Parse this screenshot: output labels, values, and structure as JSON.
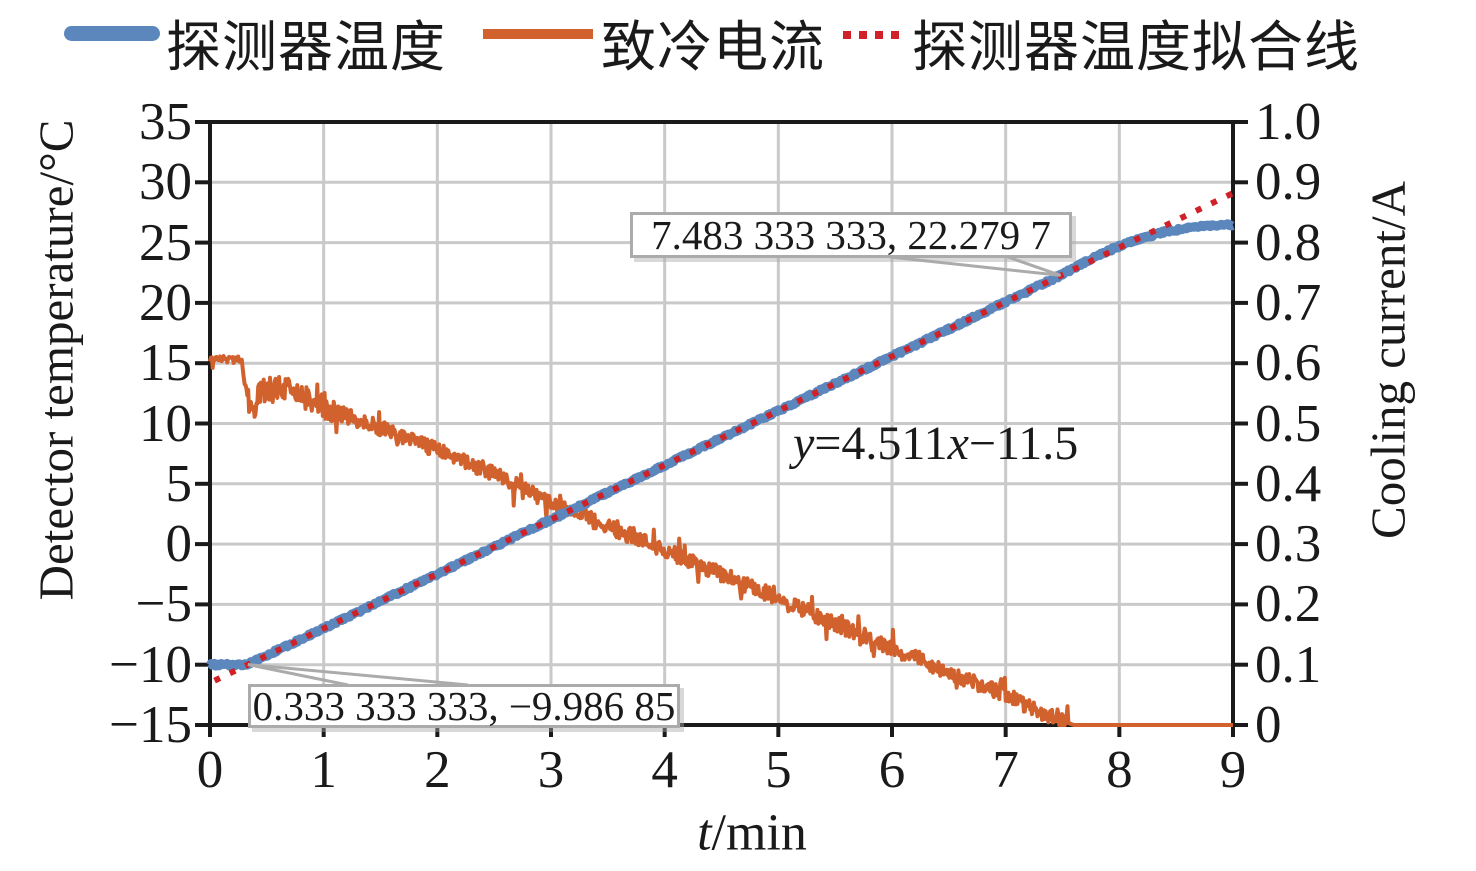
{
  "legend": {
    "items": [
      {
        "label": "探测器温度",
        "color": "#5B87BD",
        "style": "solid-thick"
      },
      {
        "label": "致冷电流",
        "color": "#D2622D",
        "style": "solid"
      },
      {
        "label": "探测器温度拟合线",
        "color": "#CF2127",
        "style": "dotted"
      }
    ]
  },
  "chart_data": {
    "type": "line",
    "title": "",
    "xlabel": "t/min",
    "xlabel_parts": {
      "var": "t",
      "unit": "/min"
    },
    "ylabel_left": "Detector temperature/°C",
    "ylabel_right": "Cooling current/A",
    "xlim": [
      0,
      9
    ],
    "ylim_left": [
      -15,
      35
    ],
    "ylim_right": [
      0,
      1.0
    ],
    "grid": true,
    "legend_position": "top",
    "x_ticks": [
      0,
      1,
      2,
      3,
      4,
      5,
      6,
      7,
      8,
      9
    ],
    "x_tick_labels": [
      "0",
      "1",
      "2",
      "3",
      "4",
      "5",
      "6",
      "7",
      "8",
      "9"
    ],
    "y_ticks_left": [
      35,
      30,
      25,
      20,
      15,
      10,
      5,
      0,
      -5,
      -10,
      -15
    ],
    "y_tick_labels_left": [
      "35",
      "30",
      "25",
      "20",
      "15",
      "10",
      "5",
      "0",
      "−5",
      "−10",
      "−15"
    ],
    "y_ticks_right": [
      1.0,
      0.9,
      0.8,
      0.7,
      0.6,
      0.5,
      0.4,
      0.3,
      0.2,
      0.1,
      0
    ],
    "y_tick_labels_right": [
      "1.0",
      "0.9",
      "0.8",
      "0.7",
      "0.6",
      "0.5",
      "0.4",
      "0.3",
      "0.2",
      "0.1",
      "0"
    ],
    "series": [
      {
        "name": "致冷电流",
        "axis": "right",
        "color": "#D2622D",
        "width": 4,
        "noise_amp": 0.013,
        "noise_amp_early": 0.02,
        "noise_end_t": 7.55,
        "keypoints": [
          [
            0,
            0.608
          ],
          [
            0.28,
            0.605
          ],
          [
            0.32,
            0.55
          ],
          [
            0.38,
            0.52
          ],
          [
            0.45,
            0.555
          ],
          [
            0.6,
            0.562
          ],
          [
            1,
            0.527
          ],
          [
            1.5,
            0.492
          ],
          [
            2,
            0.455
          ],
          [
            2.5,
            0.418
          ],
          [
            3,
            0.366
          ],
          [
            3.5,
            0.33
          ],
          [
            4,
            0.29
          ],
          [
            4.5,
            0.25
          ],
          [
            5,
            0.21
          ],
          [
            5.5,
            0.168
          ],
          [
            6,
            0.128
          ],
          [
            6.5,
            0.088
          ],
          [
            7,
            0.05
          ],
          [
            7.3,
            0.022
          ],
          [
            7.45,
            0.01
          ],
          [
            7.6,
            0
          ],
          [
            9,
            0
          ]
        ]
      },
      {
        "name": "探测器温度",
        "axis": "left",
        "color": "#5B87BD",
        "width": 9,
        "noise_amp": 0.12,
        "keypoints": [
          [
            0,
            -10
          ],
          [
            0.33,
            -9.99
          ],
          [
            1,
            -6.99
          ],
          [
            2,
            -2.48
          ],
          [
            3,
            2.03
          ],
          [
            4,
            6.54
          ],
          [
            5,
            11.06
          ],
          [
            6,
            15.57
          ],
          [
            7,
            20.08
          ],
          [
            7.48,
            22.28
          ],
          [
            7.8,
            23.9
          ],
          [
            8.1,
            25.1
          ],
          [
            8.4,
            25.9
          ],
          [
            8.7,
            26.35
          ],
          [
            9,
            26.5
          ]
        ]
      },
      {
        "name": "探测器温度拟合线",
        "axis": "left",
        "color": "#CF2127",
        "width": 6,
        "dash": "6 11",
        "fit": {
          "slope": 4.511,
          "intercept": -11.5,
          "x_start": 0.04,
          "x_end": 9
        }
      }
    ],
    "annotations": [
      {
        "text": "7.483 333 333, 22.279 7",
        "point": [
          7.483333333,
          22.2797
        ]
      },
      {
        "text": "0.333 333 333, −9.986 85",
        "point": [
          0.333333333,
          -9.98685
        ]
      }
    ],
    "equation": "y=4.511x−11.5",
    "equation_parts": {
      "y_var": "y",
      "mid": "=4.511",
      "x_var": "x",
      "tail": "−11.5"
    },
    "colors": {
      "grid": "#C9C9C9",
      "axis": "#1A1A1A",
      "leader": "#ABABAB",
      "background": "#FFFFFF"
    }
  }
}
